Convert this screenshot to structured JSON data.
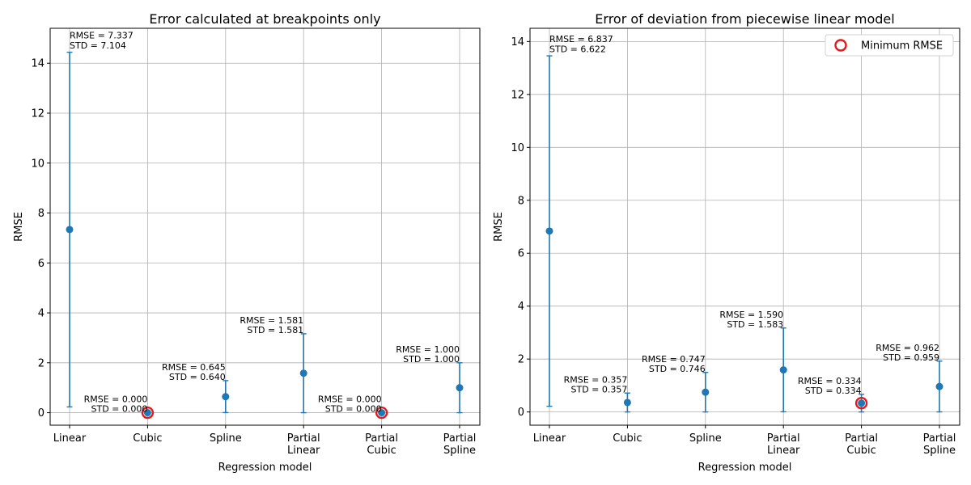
{
  "colors": {
    "series": "#1f77b4",
    "highlight": "#e41a1c",
    "grid": "#b0b0b0",
    "axis": "#000000"
  },
  "chart_data": [
    {
      "type": "scatter",
      "title": "Error calculated at breakpoints only",
      "xlabel": "Regression model",
      "ylabel": "RMSE",
      "categories": [
        "Linear",
        "Cubic",
        "Spline",
        "Partial\nLinear",
        "Partial\nCubic",
        "Partial\nSpline"
      ],
      "rmse": [
        7.337,
        0.0,
        0.645,
        1.581,
        0.0,
        1.0
      ],
      "std": [
        7.104,
        0.0,
        0.64,
        1.581,
        0.0,
        1.0
      ],
      "annotations": [
        [
          "RMSE = 7.337",
          "STD = 7.104"
        ],
        [
          "RMSE = 0.000",
          "STD = 0.000"
        ],
        [
          "RMSE = 0.645",
          "STD = 0.640"
        ],
        [
          "RMSE = 1.581",
          "STD = 1.581"
        ],
        [
          "RMSE = 0.000",
          "STD = 0.000"
        ],
        [
          "RMSE = 1.000",
          "STD = 1.000"
        ]
      ],
      "min_rmse_indices": [
        1,
        4
      ],
      "ylim": [
        -0.5,
        15.4
      ],
      "yticks": [
        0,
        2,
        4,
        6,
        8,
        10,
        12,
        14
      ],
      "grid": true,
      "legend": null
    },
    {
      "type": "scatter",
      "title": "Error of deviation from piecewise linear model",
      "xlabel": "Regression model",
      "ylabel": "RMSE",
      "categories": [
        "Linear",
        "Cubic",
        "Spline",
        "Partial\nLinear",
        "Partial\nCubic",
        "Partial\nSpline"
      ],
      "rmse": [
        6.837,
        0.357,
        0.747,
        1.59,
        0.334,
        0.962
      ],
      "std": [
        6.622,
        0.357,
        0.746,
        1.583,
        0.334,
        0.959
      ],
      "annotations": [
        [
          "RMSE = 6.837",
          "STD = 6.622"
        ],
        [
          "RMSE = 0.357",
          "STD = 0.357"
        ],
        [
          "RMSE = 0.747",
          "STD = 0.746"
        ],
        [
          "RMSE = 1.590",
          "STD = 1.583"
        ],
        [
          "RMSE = 0.334",
          "STD = 0.334"
        ],
        [
          "RMSE = 0.962",
          "STD = 0.959"
        ]
      ],
      "min_rmse_indices": [
        4
      ],
      "ylim": [
        -0.5,
        14.5
      ],
      "yticks": [
        0,
        2,
        4,
        6,
        8,
        10,
        12,
        14
      ],
      "grid": true,
      "legend": {
        "label": "Minimum RMSE",
        "placement": "upper right"
      }
    }
  ]
}
